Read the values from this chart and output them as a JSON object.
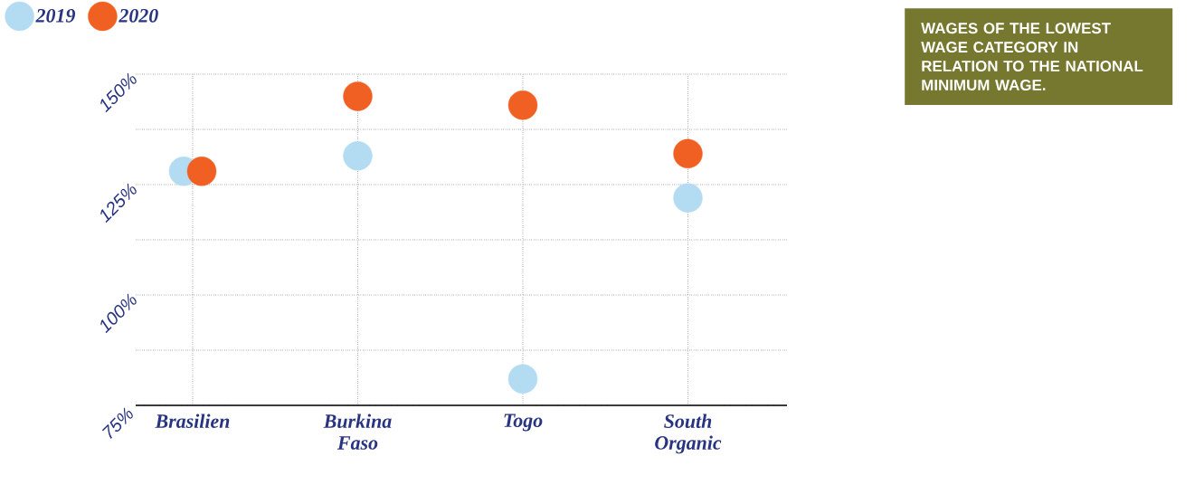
{
  "chart_data": {
    "type": "scatter",
    "categories": [
      "Brasilien",
      "Burkina Faso",
      "Togo",
      "South Organic"
    ],
    "series": [
      {
        "name": "2019",
        "color": "#b3dcf2",
        "values": [
          128,
          131.5,
          81,
          122
        ]
      },
      {
        "name": "2020",
        "color": "#f06022",
        "values": [
          128,
          145,
          143,
          132
        ]
      }
    ],
    "ylim": [
      75,
      150
    ],
    "yticks": [
      {
        "value": 75,
        "label": "75%"
      },
      {
        "value": 87.5,
        "label": null
      },
      {
        "value": 100,
        "label": "100%"
      },
      {
        "value": 112.5,
        "label": null
      },
      {
        "value": 125,
        "label": "125%"
      },
      {
        "value": 137.5,
        "label": null
      },
      {
        "value": 150,
        "label": "150%"
      }
    ],
    "grid": true,
    "legend": "top left",
    "annotations": [
      "WAGES OF THE LOWEST WAGE CATEGORY IN RELATION TO THE NATIONAL MINIMUM WAGE."
    ]
  }
}
